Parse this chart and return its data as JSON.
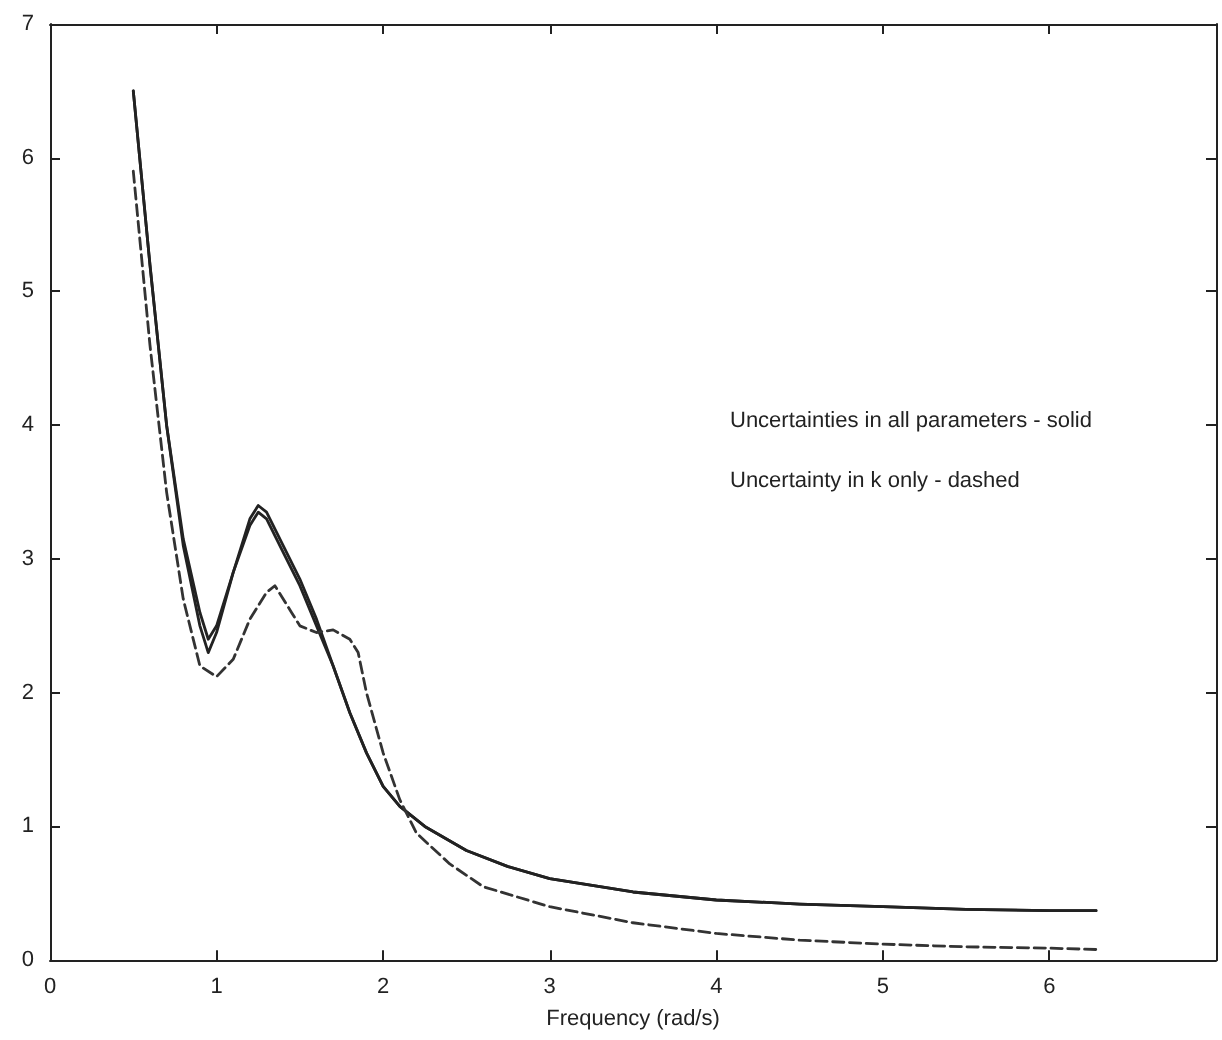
{
  "chart_data": {
    "type": "line",
    "xlabel": "Frequency (rad/s)",
    "xlim": [
      0,
      7
    ],
    "ylim": [
      0,
      7
    ],
    "xticks": [
      0,
      1,
      2,
      3,
      4,
      5,
      6,
      {
        "value": 7,
        "label": null
      }
    ],
    "yticks": [
      0,
      1,
      2,
      3,
      4,
      5,
      6,
      7
    ],
    "grid": false,
    "marker": "none",
    "annotations": [
      "Uncertainties in all parameters - solid",
      "Uncertainty in k only - dashed"
    ],
    "series": [
      {
        "color": "#222222",
        "line_style": "solid",
        "x": [
          0.5,
          0.6,
          0.7,
          0.8,
          0.9,
          0.95,
          1.0,
          1.1,
          1.2,
          1.25,
          1.3,
          1.4,
          1.5,
          1.6,
          1.7,
          1.8,
          1.9,
          2.0,
          2.1,
          2.25,
          2.5,
          2.75,
          3,
          3.5,
          4,
          4.5,
          5,
          5.5,
          6,
          6.28
        ],
        "values": [
          6.5,
          5.2,
          4.0,
          3.1,
          2.5,
          2.3,
          2.45,
          2.9,
          3.3,
          3.4,
          3.35,
          3.1,
          2.85,
          2.55,
          2.2,
          1.85,
          1.55,
          1.3,
          1.15,
          1.0,
          0.82,
          0.7,
          0.61,
          0.51,
          0.45,
          0.42,
          0.4,
          0.38,
          0.37,
          0.37
        ]
      },
      {
        "color": "#222222",
        "line_style": "solid",
        "x": [
          0.5,
          0.6,
          0.7,
          0.8,
          0.9,
          0.95,
          1.0,
          1.1,
          1.2,
          1.25,
          1.3,
          1.4,
          1.5,
          1.6,
          1.7,
          1.8,
          1.9,
          2.0,
          2.1,
          2.25,
          2.5,
          2.75,
          3,
          3.5,
          4,
          4.5,
          5,
          5.5,
          6,
          6.28
        ],
        "values": [
          6.5,
          5.2,
          4.0,
          3.15,
          2.6,
          2.4,
          2.5,
          2.9,
          3.25,
          3.35,
          3.3,
          3.05,
          2.8,
          2.5,
          2.2,
          1.85,
          1.55,
          1.3,
          1.15,
          1.0,
          0.82,
          0.7,
          0.61,
          0.51,
          0.45,
          0.42,
          0.4,
          0.38,
          0.37,
          0.37
        ]
      },
      {
        "color": "#333333",
        "line_style": "dashed",
        "x": [
          0.5,
          0.6,
          0.7,
          0.8,
          0.9,
          1.0,
          1.1,
          1.2,
          1.3,
          1.35,
          1.45,
          1.5,
          1.6,
          1.7,
          1.8,
          1.85,
          1.9,
          2.0,
          2.1,
          2.2,
          2.4,
          2.6,
          3,
          3.5,
          4,
          4.5,
          5,
          5.5,
          6,
          6.28
        ],
        "values": [
          5.9,
          4.6,
          3.5,
          2.7,
          2.2,
          2.12,
          2.25,
          2.55,
          2.75,
          2.8,
          2.6,
          2.5,
          2.45,
          2.47,
          2.4,
          2.3,
          2.0,
          1.55,
          1.2,
          0.95,
          0.72,
          0.55,
          0.4,
          0.28,
          0.2,
          0.15,
          0.12,
          0.1,
          0.09,
          0.08
        ]
      }
    ]
  }
}
